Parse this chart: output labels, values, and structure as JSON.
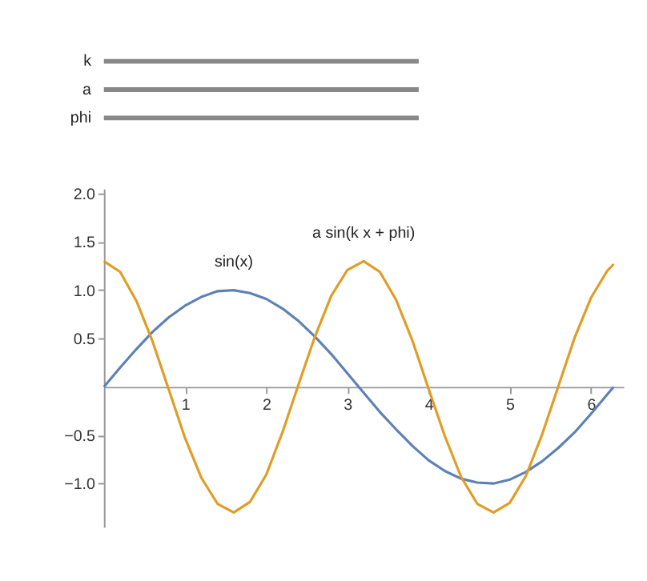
{
  "chart_data": {
    "type": "line",
    "x": [
      0,
      0.2,
      0.4,
      0.6,
      0.8,
      1.0,
      1.2,
      1.4,
      1.6,
      1.8,
      2.0,
      2.2,
      2.4,
      2.6,
      2.8,
      3.0,
      3.2,
      3.4,
      3.6,
      3.8,
      4.0,
      4.2,
      4.4,
      4.6,
      4.8,
      5.0,
      5.2,
      5.4,
      5.6,
      5.8,
      6.0,
      6.2,
      6.28
    ],
    "series": [
      {
        "name": "sin(x)",
        "color": "#5e81b5",
        "values": [
          0,
          0.2,
          0.39,
          0.57,
          0.72,
          0.84,
          0.93,
          0.99,
          1.0,
          0.97,
          0.91,
          0.81,
          0.68,
          0.52,
          0.34,
          0.14,
          -0.06,
          -0.26,
          -0.44,
          -0.61,
          -0.76,
          -0.87,
          -0.95,
          -0.99,
          -1.0,
          -0.96,
          -0.88,
          -0.77,
          -0.63,
          -0.47,
          -0.28,
          -0.08,
          0
        ]
      },
      {
        "name": "a sin(k x + phi)",
        "color": "#e19c24",
        "values": [
          1.3,
          1.19,
          0.89,
          0.47,
          -0.03,
          -0.53,
          -0.94,
          -1.21,
          -1.3,
          -1.19,
          -0.91,
          -0.47,
          0.03,
          0.52,
          0.94,
          1.21,
          1.3,
          1.19,
          0.9,
          0.48,
          -0.02,
          -0.51,
          -0.93,
          -1.21,
          -1.3,
          -1.2,
          -0.92,
          -0.49,
          0.01,
          0.51,
          0.92,
          1.2,
          1.27
        ]
      }
    ],
    "xlim": [
      0,
      6.4
    ],
    "xticks": [
      1,
      2,
      3,
      4,
      5,
      6
    ],
    "ylim": [
      -1.45,
      2.05
    ],
    "yticks": [
      {
        "value": -1.0,
        "label": "−1.0"
      },
      {
        "value": -0.5,
        "label": "−0.5"
      },
      0.5,
      {
        "value": 1.0,
        "label": "1.0"
      },
      1.5,
      {
        "value": 2.0,
        "label": "2.0"
      }
    ],
    "grid": false,
    "legend": false,
    "marker": "none",
    "line_style": "solid",
    "annotations": [
      "k",
      "a",
      "phi"
    ]
  }
}
